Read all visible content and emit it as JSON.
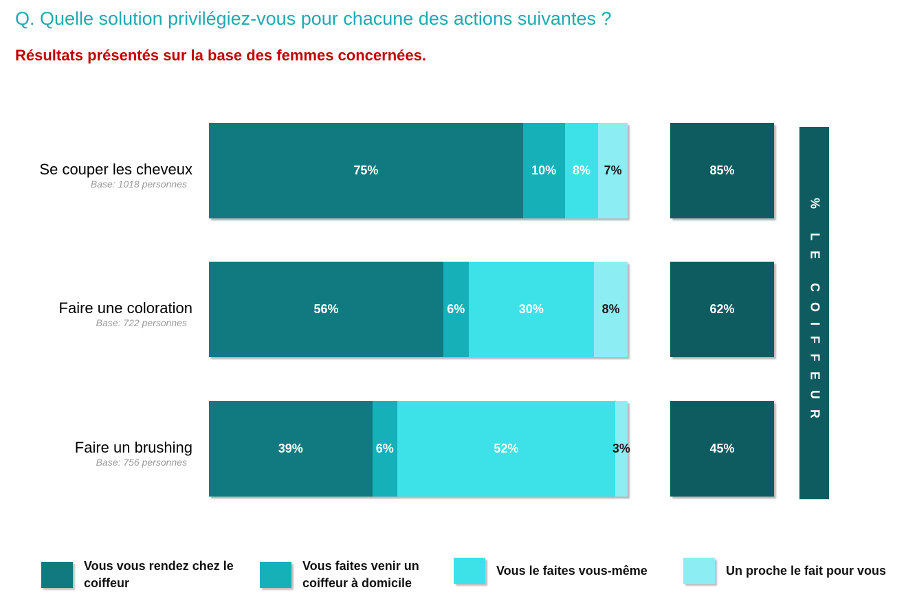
{
  "header": {
    "question": "Q. Quelle solution privilégiez-vous pour chacune des actions suivantes ?",
    "subtitle": "Résultats présentés sur la base des femmes concernées."
  },
  "side_label": "% LE COIFFEUR",
  "colors": {
    "salon": "#107a80",
    "home_hairdresser": "#16b0b8",
    "self": "#3ce2e8",
    "relative": "#8ceef2",
    "total": "#0e5b60"
  },
  "legend": [
    {
      "label": "Vous vous rendez chez le coiffeur",
      "color": "#107a80"
    },
    {
      "label": "Vous faites venir un coiffeur à domicile",
      "color": "#16b0b8"
    },
    {
      "label": "Vous le faites vous-même",
      "color": "#3ce2e8"
    },
    {
      "label": "Un proche le fait pour vous",
      "color": "#8ceef2"
    }
  ],
  "chart_data": {
    "type": "bar",
    "stacked": true,
    "orientation": "horizontal",
    "categories": [
      "Se couper les cheveux",
      "Faire une coloration",
      "Faire un brushing"
    ],
    "bases": [
      "Base: 1018 personnes",
      "Base: 722 personnes",
      "Base: 756 personnes"
    ],
    "series": [
      {
        "name": "Vous vous rendez chez le coiffeur",
        "values": [
          75,
          56,
          39
        ],
        "labels": [
          "75%",
          "56%",
          "39%"
        ]
      },
      {
        "name": "Vous faites venir un coiffeur à domicile",
        "values": [
          10,
          6,
          6
        ],
        "labels": [
          "10%",
          "6%",
          "6%"
        ]
      },
      {
        "name": "Vous le faites vous-même",
        "values": [
          8,
          30,
          52
        ],
        "labels": [
          "8%",
          "30%",
          "52%"
        ]
      },
      {
        "name": "Un proche le fait pour vous",
        "values": [
          7,
          8,
          3
        ],
        "labels": [
          "7%",
          "8%",
          "3%"
        ]
      }
    ],
    "totals": {
      "label": "% LE COIFFEUR",
      "values": [
        85,
        62,
        45
      ],
      "labels": [
        "85%",
        "62%",
        "45%"
      ]
    },
    "xlim": [
      0,
      100
    ],
    "grid": false,
    "legend_position": "bottom"
  }
}
